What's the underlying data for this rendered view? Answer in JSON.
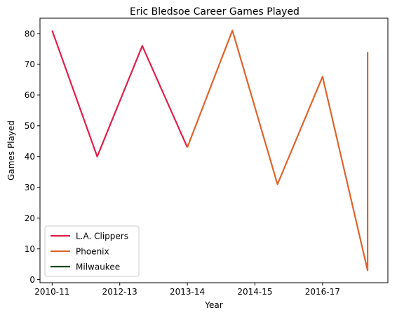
{
  "chart_data": {
    "type": "line",
    "title": "Eric Bledsoe Career Games Played",
    "xlabel": "Year",
    "ylabel": "Games Played",
    "x": [
      0,
      1,
      2,
      3,
      4,
      5,
      6,
      7,
      7
    ],
    "xlim": [
      -0.27,
      7.45
    ],
    "ylim": [
      -1,
      85
    ],
    "x_ticks": [
      {
        "value": 0,
        "label": "2010-11"
      },
      {
        "value": 1.5,
        "label": "2012-13"
      },
      {
        "value": 3,
        "label": "2013-14"
      },
      {
        "value": 4.5,
        "label": "2014-15"
      },
      {
        "value": 6,
        "label": "2016-17"
      }
    ],
    "y_ticks": [
      0,
      10,
      20,
      30,
      40,
      50,
      60,
      70,
      80
    ],
    "series": [
      {
        "name": "L.A. Clippers",
        "color": "#e0204a",
        "x": [
          0,
          1,
          2,
          3
        ],
        "values": [
          81,
          40,
          76,
          43
        ]
      },
      {
        "name": "Phoenix",
        "color": "#e0632a",
        "x": [
          3,
          4,
          5,
          6,
          7,
          7
        ],
        "values": [
          43,
          81,
          31,
          66,
          3,
          74
        ]
      },
      {
        "name": "Milwaukee",
        "color": "#00471b",
        "x": [],
        "values": []
      }
    ],
    "grid": false,
    "legend_position": "lower-left"
  }
}
